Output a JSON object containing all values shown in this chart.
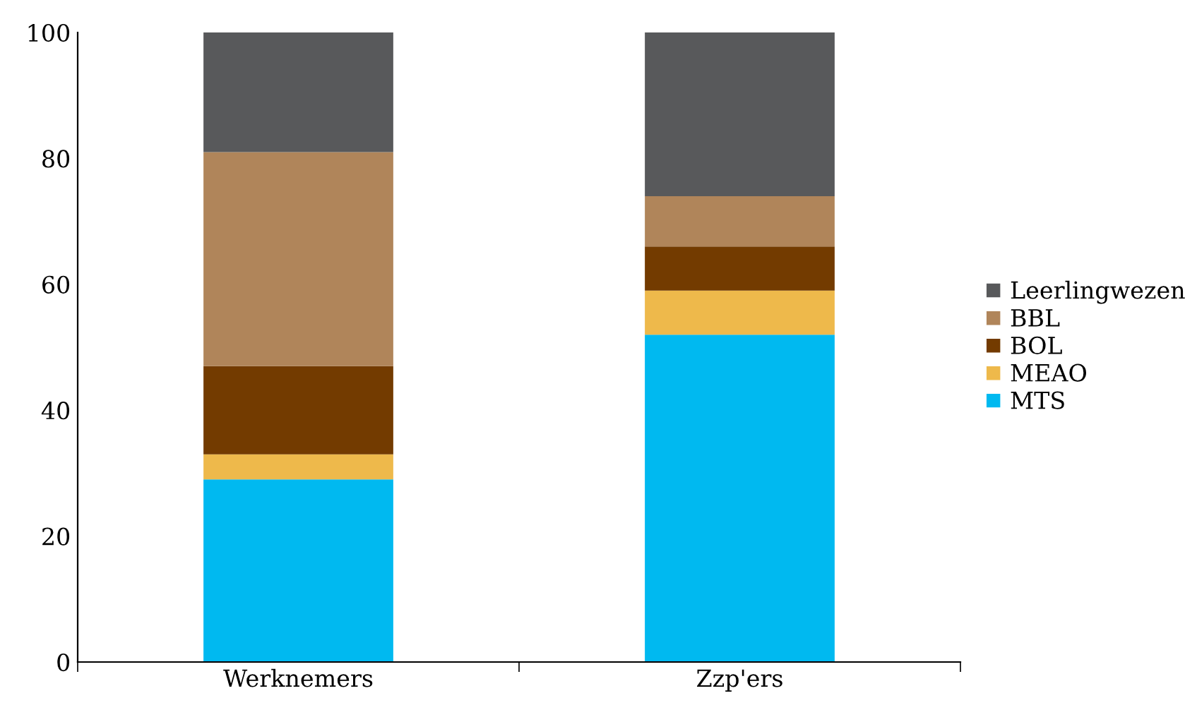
{
  "chart_data": {
    "type": "bar",
    "stacked": true,
    "categories": [
      "Werknemers",
      "Zzp'ers"
    ],
    "series": [
      {
        "name": "MTS",
        "color": "#00b9f0",
        "values": [
          29,
          52
        ]
      },
      {
        "name": "MEAO",
        "color": "#eeb94b",
        "values": [
          4,
          7
        ]
      },
      {
        "name": "BOL",
        "color": "#733b00",
        "values": [
          14,
          7
        ]
      },
      {
        "name": "BBL",
        "color": "#b0855a",
        "values": [
          34,
          8
        ]
      },
      {
        "name": "Leerlingwezen",
        "color": "#58595b",
        "values": [
          19,
          26
        ]
      }
    ],
    "ylim": [
      0,
      100
    ],
    "yticks": [
      0,
      20,
      40,
      60,
      80,
      100
    ],
    "grid": false,
    "legend": "right",
    "marker": "square"
  }
}
